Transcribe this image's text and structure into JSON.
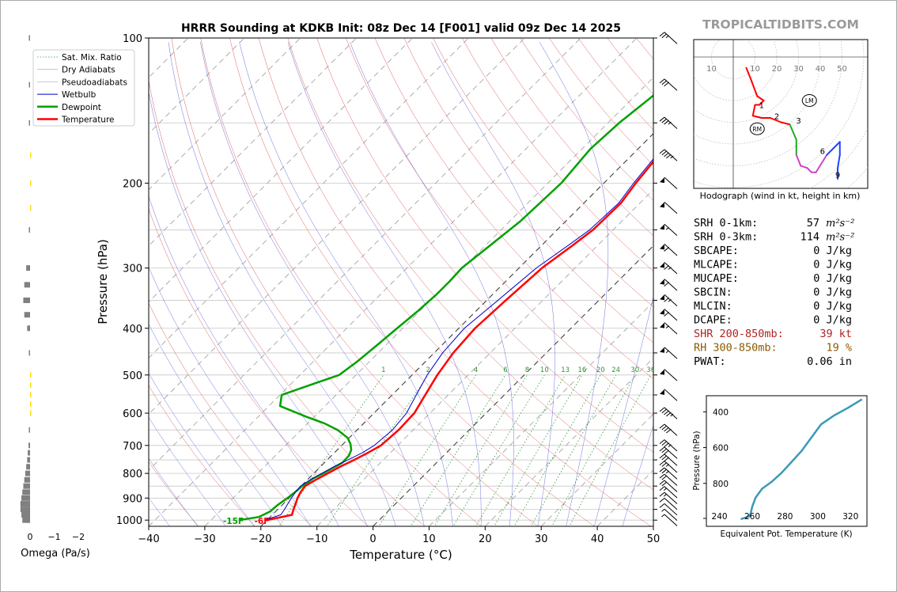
{
  "header": {
    "title": "HRRR Sounding at KDKB Init: 08z Dec 14 [F001] valid 09z Dec 14 2025",
    "watermark": "TROPICALTIDBITS.COM"
  },
  "colors": {
    "temperature": "#ff0000",
    "dewpoint": "#00a000",
    "wetbulb": "#0000cc",
    "theta_e": "#3a9ab6",
    "omega_up": "#ffdd00",
    "omega_down": "#808080"
  },
  "chart_data": [
    {
      "type": "line",
      "name": "skew-t",
      "xlabel": "Temperature (°C)",
      "ylabel": "Pressure (hPa)",
      "xlim": [
        -40,
        50
      ],
      "ylim": [
        1030,
        100
      ],
      "y_scale": "log",
      "x_ticks": [
        "−40",
        "−30",
        "−20",
        "−10",
        "0",
        "10",
        "20",
        "30",
        "40",
        "50"
      ],
      "y_ticks": [
        "100",
        "200",
        "300",
        "400",
        "500",
        "600",
        "700",
        "800",
        "900",
        "1000"
      ],
      "legend_position": "upper-left",
      "legend": [
        "Sat. Mix. Ratio",
        "Dry Adiabats",
        "Pseudoadiabats",
        "Wetbulb",
        "Dewpoint",
        "Temperature"
      ],
      "mixing_ratio_labels": [
        "1",
        "2",
        "4",
        "6",
        "8",
        "10",
        "13",
        "16",
        "20",
        "24",
        "30",
        "36"
      ],
      "surface_labels": {
        "dewpoint": "-15F",
        "temperature": "-6F"
      },
      "series": [
        {
          "name": "Temperature",
          "p": [
            1000,
            975,
            950,
            925,
            900,
            875,
            850,
            825,
            800,
            775,
            750,
            725,
            700,
            650,
            600,
            550,
            500,
            450,
            400,
            350,
            300,
            270,
            250,
            220,
            200,
            170,
            150,
            125,
            100
          ],
          "t": [
            -20,
            -16.5,
            -17.2,
            -17.8,
            -18.5,
            -19,
            -19.3,
            -18.5,
            -17.5,
            -16.5,
            -15.2,
            -14,
            -13,
            -12.6,
            -12.8,
            -14.1,
            -15.5,
            -16.6,
            -17.1,
            -16.6,
            -15.9,
            -14.5,
            -13.6,
            -13.4,
            -14.3,
            -15.4,
            -16.2,
            -17,
            -18.1
          ]
        },
        {
          "name": "Dewpoint",
          "p": [
            1000,
            985,
            960,
            930,
            900,
            875,
            850,
            820,
            800,
            760,
            735,
            715,
            695,
            675,
            650,
            630,
            610,
            580,
            550,
            520,
            500,
            470,
            430,
            400,
            370,
            340,
            320,
            300,
            270,
            240,
            200,
            170,
            150,
            125,
            100
          ],
          "t": [
            -25,
            -22,
            -21,
            -20.8,
            -20.3,
            -20,
            -19.8,
            -19.2,
            -18.3,
            -16.8,
            -16.9,
            -17.5,
            -18.7,
            -20.3,
            -23.5,
            -27,
            -31.5,
            -38,
            -39.7,
            -35.8,
            -33,
            -32.2,
            -31.5,
            -31,
            -30.4,
            -30,
            -30,
            -30.2,
            -29.2,
            -28.1,
            -27.6,
            -28.5,
            -28,
            -26.3,
            -23.4
          ]
        },
        {
          "name": "Wetbulb",
          "p": [
            1000,
            975,
            950,
            925,
            900,
            875,
            850,
            825,
            800,
            775,
            750,
            725,
            700,
            650,
            600,
            550,
            500,
            450,
            400,
            350,
            300,
            270,
            250,
            220,
            200,
            170,
            150,
            125,
            100
          ],
          "t": [
            -20.5,
            -18.5,
            -18.8,
            -19.2,
            -19.6,
            -19.9,
            -20.1,
            -19.5,
            -18.6,
            -17.6,
            -16.3,
            -15,
            -14.2,
            -13.7,
            -14.2,
            -15.7,
            -17.3,
            -18.5,
            -19,
            -18,
            -16.9,
            -15.3,
            -14.2,
            -13.8,
            -14.7,
            -15.8,
            -16.6,
            -17.4,
            -18.5
          ]
        }
      ]
    },
    {
      "type": "bar",
      "name": "omega",
      "xlabel": "Omega (Pa/s)",
      "x_ticks": [
        "0",
        "−1",
        "−2"
      ],
      "p": [
        1000,
        975,
        950,
        925,
        900,
        875,
        850,
        825,
        800,
        775,
        750,
        725,
        700,
        650,
        600,
        575,
        550,
        525,
        500,
        450,
        400,
        375,
        350,
        325,
        300,
        250,
        225,
        200,
        175,
        150,
        125,
        100
      ],
      "values": [
        0.4,
        0.45,
        0.5,
        0.5,
        0.45,
        0.4,
        0.35,
        0.3,
        0.25,
        0.2,
        0.15,
        0.12,
        0.08,
        0.03,
        -0.03,
        -0.05,
        -0.05,
        -0.04,
        -0.03,
        0.05,
        0.15,
        0.3,
        0.35,
        0.3,
        0.2,
        0.02,
        -0.03,
        -0.02,
        -0.02,
        0.02,
        0.03,
        0.02
      ]
    },
    {
      "type": "line",
      "name": "hodograph",
      "caption": "Hodograph (wind in kt, height in km)",
      "rings": [
        "10",
        "10",
        "20",
        "30",
        "40",
        "50"
      ],
      "u": [
        6,
        8,
        11,
        14,
        12,
        10,
        9,
        13,
        17,
        22,
        26,
        29,
        29,
        29,
        31,
        34,
        36,
        38,
        43,
        49,
        49,
        48,
        48
      ],
      "v": [
        -5,
        -10,
        -18,
        -20,
        -22,
        -22,
        -27,
        -28,
        -28,
        -30,
        -31,
        -38,
        -41,
        -45,
        -50,
        -51,
        -53,
        -53,
        -45,
        -39,
        -45,
        -51,
        -56
      ],
      "segment_colors": [
        "#ff0000",
        "#ff0000",
        "#ff0000",
        "#ff0000",
        "#ff0000",
        "#ff0000",
        "#ff0000",
        "#ff0000",
        "#ff0000",
        "#ff0000",
        "#22aa22",
        "#22aa22",
        "#22aa22",
        "#cc44cc",
        "#cc44cc",
        "#cc44cc",
        "#cc44cc",
        "#cc44cc",
        "#2244ff",
        "#2244ff",
        "#2244ff",
        "#2244ff"
      ],
      "height_labels": [
        {
          "label": "1",
          "u": 13,
          "v": -22
        },
        {
          "label": "2",
          "u": 20,
          "v": -27
        },
        {
          "label": "3",
          "u": 30,
          "v": -29
        },
        {
          "label": "6",
          "u": 41,
          "v": -43
        },
        {
          "label": "9",
          "u": 48,
          "v": -54
        }
      ],
      "storm_motion": [
        {
          "label": "LM",
          "u": 35,
          "v": -20
        },
        {
          "label": "RM",
          "u": 11,
          "v": -33
        }
      ]
    },
    {
      "type": "line",
      "name": "theta-e",
      "xlabel": "Equivalent Pot. Temperature (K)",
      "ylabel": "Pressure (hPa)",
      "x_ticks": [
        "240",
        "260",
        "280",
        "300",
        "320"
      ],
      "y_ticks": [
        "400",
        "600",
        "800"
      ],
      "theta_e": [
        253,
        258,
        259,
        260,
        262,
        266,
        272,
        278,
        284,
        290,
        294,
        298,
        302,
        310,
        318,
        327
      ],
      "p": [
        1000,
        985,
        970,
        930,
        880,
        830,
        790,
        740,
        680,
        620,
        570,
        520,
        470,
        420,
        380,
        330
      ]
    }
  ],
  "stats": [
    {
      "label": "SRH 0-1km:",
      "value": "57",
      "unit": "m²s⁻²",
      "color": "#000000"
    },
    {
      "label": "SRH 0-3km:",
      "value": "114",
      "unit": "m²s⁻²",
      "color": "#000000"
    },
    {
      "label": "SBCAPE:",
      "value": "0 J/kg",
      "unit": "",
      "color": "#000000"
    },
    {
      "label": "MLCAPE:",
      "value": "0 J/kg",
      "unit": "",
      "color": "#000000"
    },
    {
      "label": "MUCAPE:",
      "value": "0 J/kg",
      "unit": "",
      "color": "#000000"
    },
    {
      "label": "SBCIN:",
      "value": "0 J/kg",
      "unit": "",
      "color": "#000000"
    },
    {
      "label": "MLCIN:",
      "value": "0 J/kg",
      "unit": "",
      "color": "#000000"
    },
    {
      "label": "DCAPE:",
      "value": "0 J/kg",
      "unit": "",
      "color": "#000000"
    },
    {
      "label": "SHR 200-850mb:",
      "value": "39 kt",
      "unit": "",
      "color": "#b22222"
    },
    {
      "label": "RH 300-850mb:",
      "value": "19 %",
      "unit": "",
      "color": "#8b5a00"
    },
    {
      "label": "PWAT:",
      "value": "0.06 in",
      "unit": "",
      "color": "#000000"
    }
  ],
  "wind_barbs": [
    {
      "p": 1000,
      "speed": 5
    },
    {
      "p": 975,
      "speed": 5
    },
    {
      "p": 950,
      "speed": 10
    },
    {
      "p": 925,
      "speed": 10
    },
    {
      "p": 900,
      "speed": 15
    },
    {
      "p": 875,
      "speed": 15
    },
    {
      "p": 850,
      "speed": 20
    },
    {
      "p": 825,
      "speed": 20
    },
    {
      "p": 800,
      "speed": 25
    },
    {
      "p": 775,
      "speed": 25
    },
    {
      "p": 750,
      "speed": 30
    },
    {
      "p": 725,
      "speed": 30
    },
    {
      "p": 700,
      "speed": 35
    },
    {
      "p": 650,
      "speed": 40
    },
    {
      "p": 600,
      "speed": 45
    },
    {
      "p": 550,
      "speed": 50
    },
    {
      "p": 500,
      "speed": 50
    },
    {
      "p": 450,
      "speed": 55
    },
    {
      "p": 400,
      "speed": 55
    },
    {
      "p": 375,
      "speed": 60
    },
    {
      "p": 350,
      "speed": 65
    },
    {
      "p": 325,
      "speed": 60
    },
    {
      "p": 300,
      "speed": 65
    },
    {
      "p": 275,
      "speed": 60
    },
    {
      "p": 250,
      "speed": 55
    },
    {
      "p": 225,
      "speed": 50
    },
    {
      "p": 200,
      "speed": 50
    },
    {
      "p": 175,
      "speed": 45
    },
    {
      "p": 150,
      "speed": 35
    },
    {
      "p": 125,
      "speed": 30
    },
    {
      "p": 100,
      "speed": 25
    }
  ]
}
